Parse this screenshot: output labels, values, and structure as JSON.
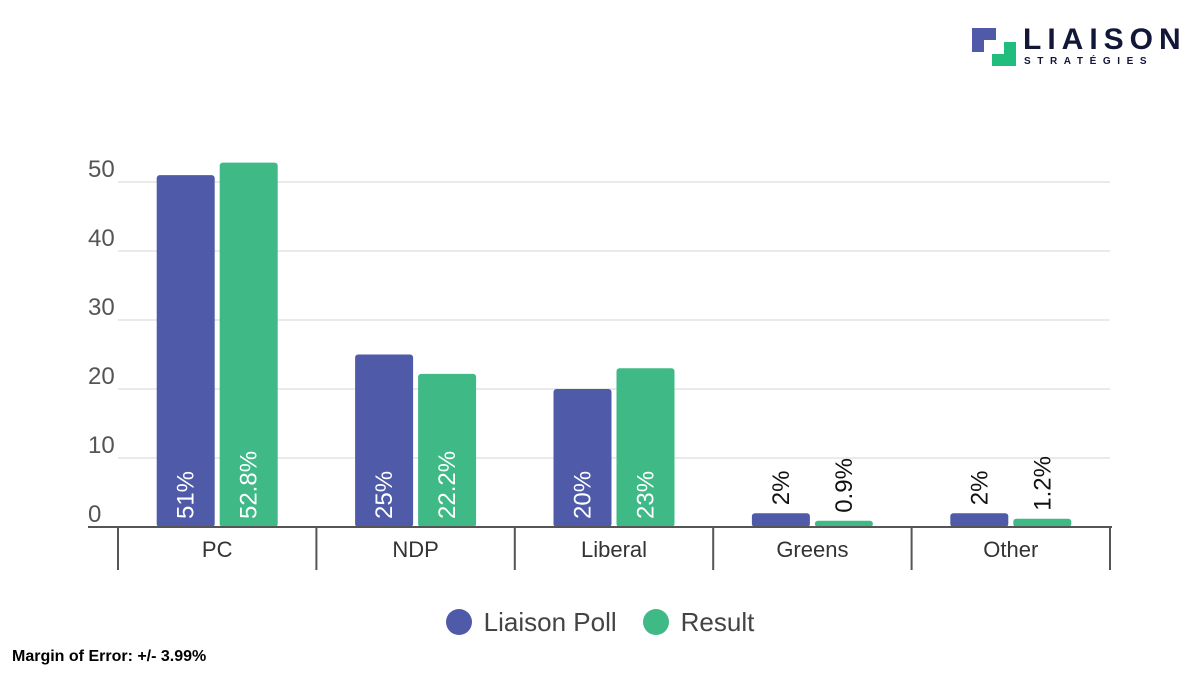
{
  "logo": {
    "title": "LIAISON",
    "subtitle": "STRATÉGIES"
  },
  "colors": {
    "poll": "#4f5aa8",
    "result": "#3fba86",
    "grid": "#e4e4e4",
    "axis": "#555555",
    "tick_text": "#555555",
    "logo_blue": "#4f5aa8",
    "logo_green": "#21bd7d"
  },
  "chart_data": {
    "type": "bar",
    "title": "",
    "xlabel": "",
    "ylabel": "",
    "categories": [
      "PC",
      "NDP",
      "Liberal",
      "Greens",
      "Other"
    ],
    "series": [
      {
        "name": "Liaison Poll",
        "values": [
          51,
          25,
          20,
          2,
          2
        ],
        "labels": [
          "51%",
          "25%",
          "20%",
          "2%",
          "2%"
        ]
      },
      {
        "name": "Result",
        "values": [
          52.8,
          22.2,
          23,
          0.9,
          1.2
        ],
        "labels": [
          "52.8%",
          "22.2%",
          "23%",
          "0.9%",
          "1.2%"
        ]
      }
    ],
    "ylim": [
      0,
      50
    ],
    "yticks": [
      0,
      10,
      20,
      30,
      40,
      50
    ],
    "grid": true,
    "legend_position": "bottom-center"
  },
  "legend": {
    "items": [
      {
        "label": "Liaison Poll"
      },
      {
        "label": "Result"
      }
    ]
  },
  "footer": {
    "margin_of_error": "Margin of Error: +/- 3.99%"
  }
}
